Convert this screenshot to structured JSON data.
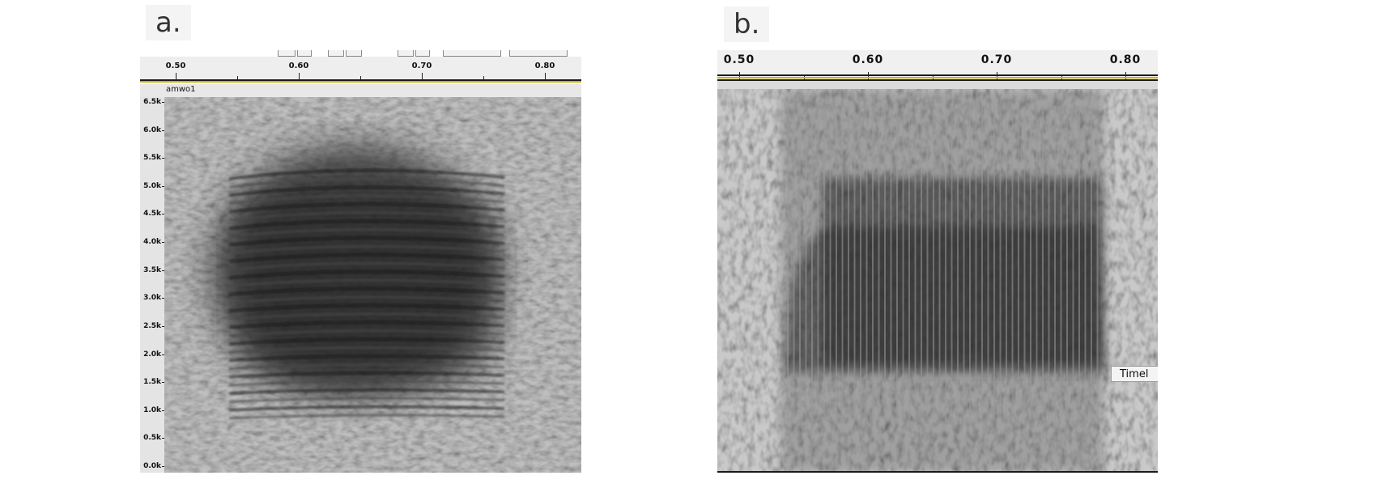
{
  "panels": {
    "a": {
      "label": "a.",
      "track_name": "amwo1",
      "time_ruler": [
        "0.50",
        "0.60",
        "0.70",
        "0.80"
      ],
      "freq_scale": [
        "6.5k",
        "6.0k",
        "5.5k",
        "5.0k",
        "4.5k",
        "4.0k",
        "3.5k",
        "3.0k",
        "2.5k",
        "2.0k",
        "1.5k",
        "1.0k",
        "0.5k",
        "0.0k"
      ]
    },
    "b": {
      "label": "b.",
      "time_ruler": [
        "0.50",
        "0.60",
        "0.70",
        "0.80"
      ],
      "tooltip": "Timel"
    }
  },
  "colors": {
    "ruler_accent": "#c8b400",
    "ruler_line": "#1a1a1a"
  }
}
